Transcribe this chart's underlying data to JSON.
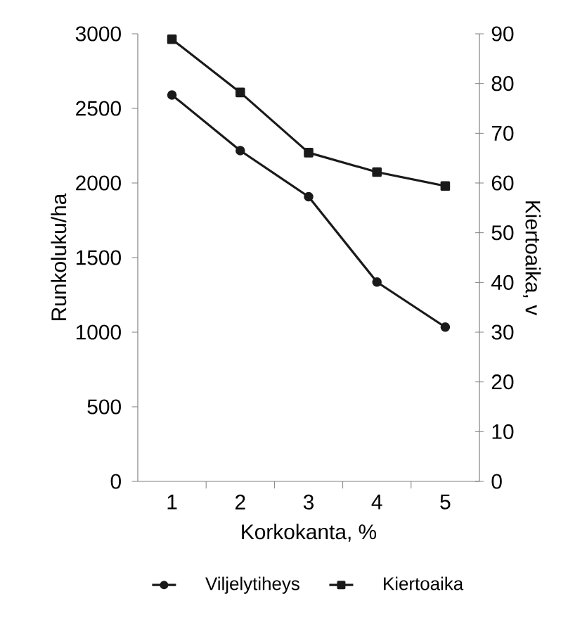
{
  "chart_data": {
    "type": "line",
    "xlabel": "Korkokanta, %",
    "ylabel": "Runkoluku/ha",
    "y2label": "Kiertoaika, v",
    "categories": [
      "1",
      "2",
      "3",
      "4",
      "5"
    ],
    "series": [
      {
        "name": "Viljelytiheys",
        "color": "#1a1a1a",
        "marker": "circle",
        "values": [
          2590,
          2217,
          1908,
          1336,
          1034
        ]
      },
      {
        "name": "Kiertoaika",
        "color": "#1a1a1a",
        "marker": "square",
        "axis": "y2",
        "values": [
          88.9,
          78.2,
          66.1,
          62.2,
          59.4
        ]
      }
    ],
    "ylim": [
      0,
      3000
    ],
    "yticks": [
      0,
      500,
      1000,
      1500,
      2000,
      2500,
      3000
    ],
    "y2lim": [
      0,
      90
    ],
    "y2ticks": [
      0,
      10,
      20,
      30,
      40,
      50,
      60,
      70,
      80,
      90
    ],
    "legend": "bottom",
    "line_style": "solid"
  }
}
